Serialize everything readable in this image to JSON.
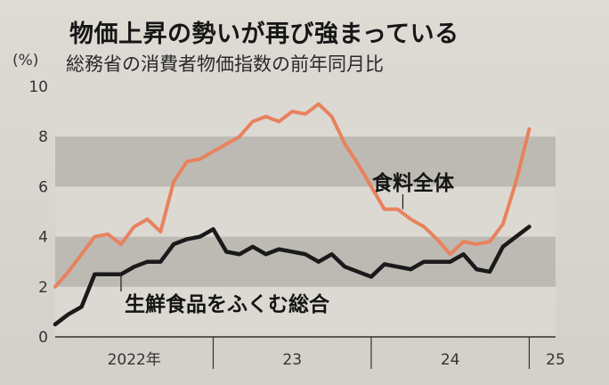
{
  "title": "物価上昇の勢いが再び強まっている",
  "subtitle": "総務省の消費者物価指数の前年同月比",
  "unit": "(%)",
  "colors": {
    "food": "#e8825e",
    "core": "#1a1a1a",
    "band": "#bdbab4",
    "background": "#dcd9d3"
  },
  "chart_data": {
    "type": "line",
    "ylim": [
      0,
      10
    ],
    "yticks": [
      "0",
      "2",
      "4",
      "6",
      "8",
      "10"
    ],
    "grid": "alternating horizontal bands",
    "xlim": [
      0,
      38
    ],
    "xtick_labels": [
      {
        "label": "2022年",
        "month": 6
      },
      {
        "label": "23",
        "month": 18
      },
      {
        "label": "24",
        "month": 30
      },
      {
        "label": "25",
        "month": 38
      }
    ],
    "year_boundaries": [
      12,
      24,
      36
    ],
    "series": [
      {
        "name": "食料全体",
        "color_key": "food",
        "values": [
          2.0,
          2.6,
          3.3,
          4.0,
          4.1,
          3.7,
          4.4,
          4.7,
          4.2,
          6.2,
          7.0,
          7.1,
          7.4,
          7.7,
          8.0,
          8.6,
          8.8,
          8.6,
          9.0,
          8.9,
          9.3,
          8.8,
          7.7,
          6.9,
          6.0,
          5.1,
          5.1,
          4.7,
          4.4,
          3.9,
          3.3,
          3.8,
          3.7,
          3.8,
          4.5,
          6.2,
          8.3
        ]
      },
      {
        "name": "生鮮食品をふくむ総合",
        "color_key": "core",
        "values": [
          0.5,
          0.9,
          1.2,
          2.5,
          2.5,
          2.5,
          2.8,
          3.0,
          3.0,
          3.7,
          3.9,
          4.0,
          4.3,
          3.4,
          3.3,
          3.6,
          3.3,
          3.5,
          3.4,
          3.3,
          3.0,
          3.3,
          2.8,
          2.6,
          2.4,
          2.9,
          2.8,
          2.7,
          3.0,
          3.0,
          3.0,
          3.3,
          2.7,
          2.6,
          3.6,
          4.0,
          4.4
        ]
      }
    ]
  }
}
